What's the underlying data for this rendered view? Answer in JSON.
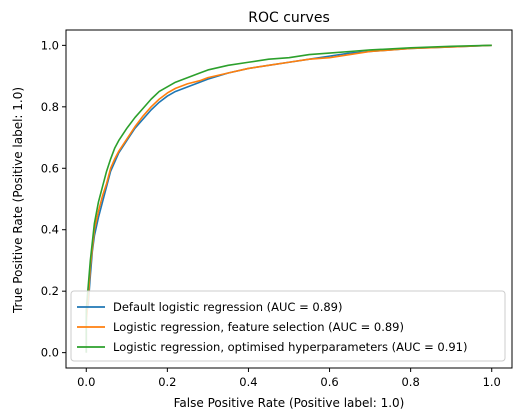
{
  "chart_data": {
    "type": "line",
    "title": "ROC curves",
    "xlabel": "False Positive Rate (Positive label: 1.0)",
    "ylabel": "True Positive Rate (Positive label: 1.0)",
    "xlim": [
      -0.05,
      1.05
    ],
    "ylim": [
      -0.05,
      1.05
    ],
    "x_ticks": [
      "0.0",
      "0.2",
      "0.4",
      "0.6",
      "0.8",
      "1.0"
    ],
    "y_ticks": [
      "0.0",
      "0.2",
      "0.4",
      "0.6",
      "0.8",
      "1.0"
    ],
    "grid": false,
    "legend_position": "lower-right",
    "series": [
      {
        "name": "Default logistic regression (AUC = 0.89)",
        "color": "#1f77b4",
        "points": [
          [
            0,
            0
          ],
          [
            0,
            0.12
          ],
          [
            0.005,
            0.16
          ],
          [
            0.01,
            0.25
          ],
          [
            0.015,
            0.33
          ],
          [
            0.02,
            0.38
          ],
          [
            0.03,
            0.44
          ],
          [
            0.04,
            0.49
          ],
          [
            0.05,
            0.54
          ],
          [
            0.06,
            0.59
          ],
          [
            0.07,
            0.62
          ],
          [
            0.08,
            0.65
          ],
          [
            0.1,
            0.69
          ],
          [
            0.12,
            0.73
          ],
          [
            0.14,
            0.76
          ],
          [
            0.16,
            0.79
          ],
          [
            0.18,
            0.815
          ],
          [
            0.2,
            0.835
          ],
          [
            0.22,
            0.85
          ],
          [
            0.25,
            0.865
          ],
          [
            0.28,
            0.88
          ],
          [
            0.3,
            0.89
          ],
          [
            0.35,
            0.91
          ],
          [
            0.4,
            0.925
          ],
          [
            0.45,
            0.935
          ],
          [
            0.5,
            0.945
          ],
          [
            0.55,
            0.955
          ],
          [
            0.6,
            0.965
          ],
          [
            0.65,
            0.975
          ],
          [
            0.7,
            0.98
          ],
          [
            0.8,
            0.99
          ],
          [
            0.9,
            0.995
          ],
          [
            1.0,
            1.0
          ]
        ]
      },
      {
        "name": "Logistic regression, feature selection (AUC = 0.89)",
        "color": "#ff7f0e",
        "points": [
          [
            0,
            0
          ],
          [
            0,
            0.1
          ],
          [
            0.005,
            0.18
          ],
          [
            0.01,
            0.28
          ],
          [
            0.015,
            0.34
          ],
          [
            0.02,
            0.4
          ],
          [
            0.03,
            0.46
          ],
          [
            0.04,
            0.51
          ],
          [
            0.05,
            0.55
          ],
          [
            0.06,
            0.6
          ],
          [
            0.07,
            0.63
          ],
          [
            0.08,
            0.655
          ],
          [
            0.1,
            0.695
          ],
          [
            0.12,
            0.735
          ],
          [
            0.14,
            0.77
          ],
          [
            0.16,
            0.8
          ],
          [
            0.18,
            0.825
          ],
          [
            0.2,
            0.845
          ],
          [
            0.22,
            0.86
          ],
          [
            0.25,
            0.875
          ],
          [
            0.28,
            0.885
          ],
          [
            0.3,
            0.895
          ],
          [
            0.35,
            0.91
          ],
          [
            0.4,
            0.925
          ],
          [
            0.45,
            0.935
          ],
          [
            0.5,
            0.945
          ],
          [
            0.55,
            0.955
          ],
          [
            0.6,
            0.96
          ],
          [
            0.65,
            0.97
          ],
          [
            0.7,
            0.98
          ],
          [
            0.8,
            0.99
          ],
          [
            0.9,
            0.995
          ],
          [
            1.0,
            1.0
          ]
        ]
      },
      {
        "name": "Logistic regression, optimised hyperparameters (AUC = 0.91)",
        "color": "#2ca02c",
        "points": [
          [
            0,
            0
          ],
          [
            0,
            0.14
          ],
          [
            0.005,
            0.22
          ],
          [
            0.01,
            0.3
          ],
          [
            0.015,
            0.36
          ],
          [
            0.02,
            0.42
          ],
          [
            0.03,
            0.49
          ],
          [
            0.04,
            0.54
          ],
          [
            0.05,
            0.59
          ],
          [
            0.06,
            0.63
          ],
          [
            0.07,
            0.665
          ],
          [
            0.08,
            0.69
          ],
          [
            0.1,
            0.73
          ],
          [
            0.12,
            0.765
          ],
          [
            0.14,
            0.795
          ],
          [
            0.16,
            0.825
          ],
          [
            0.18,
            0.85
          ],
          [
            0.2,
            0.865
          ],
          [
            0.22,
            0.88
          ],
          [
            0.25,
            0.895
          ],
          [
            0.28,
            0.91
          ],
          [
            0.3,
            0.92
          ],
          [
            0.35,
            0.935
          ],
          [
            0.4,
            0.945
          ],
          [
            0.45,
            0.955
          ],
          [
            0.5,
            0.96
          ],
          [
            0.55,
            0.97
          ],
          [
            0.6,
            0.975
          ],
          [
            0.65,
            0.98
          ],
          [
            0.7,
            0.985
          ],
          [
            0.8,
            0.992
          ],
          [
            0.9,
            0.997
          ],
          [
            1.0,
            1.0
          ]
        ]
      }
    ]
  }
}
